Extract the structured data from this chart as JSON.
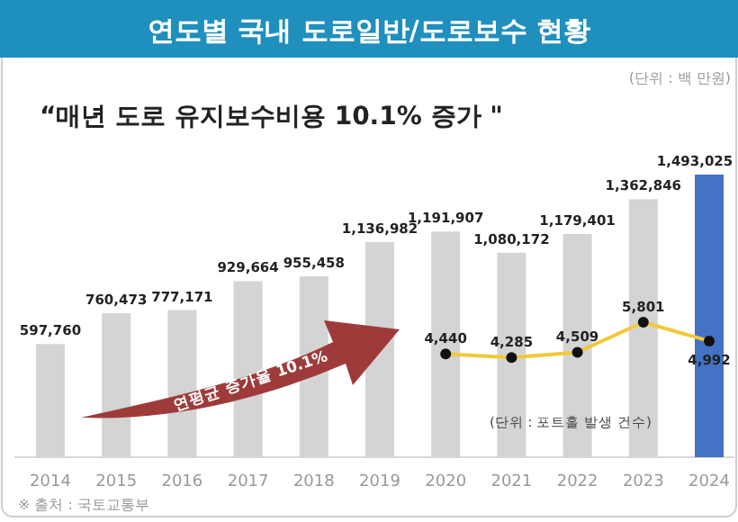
{
  "chart_data": {
    "type": "bar",
    "title": "연도별 국내 도로일반/도로보수 현황",
    "subtitle": "“매년 도로 유지보수비용 10.1% 증가 \"",
    "categories": [
      "2014",
      "2015",
      "2016",
      "2017",
      "2018",
      "2019",
      "2020",
      "2021",
      "2022",
      "2023",
      "2024"
    ],
    "series": [
      {
        "colors": [
          "#d4d4d4",
          "#d4d4d4",
          "#d4d4d4",
          "#d4d4d4",
          "#d4d4d4",
          "#d4d4d4",
          "#d4d4d4",
          "#d4d4d4",
          "#d4d4d4",
          "#d4d4d4",
          "#4472c4"
        ],
        "values": [
          597760,
          760473,
          777171,
          929664,
          955458,
          1136982,
          1191907,
          1080172,
          1179401,
          1362846,
          1493025
        ],
        "value_labels": [
          "597,760",
          "760,473",
          "777,171",
          "929,664",
          "955,458",
          "1,136,982",
          "1,191,907",
          "1,080,172",
          "1,179,401",
          "1,362,846",
          "1,493,025"
        ]
      },
      {
        "type": "line",
        "axis": "y2",
        "color": "#f2c93b",
        "marker": "circle",
        "values": [
          null,
          null,
          null,
          null,
          null,
          null,
          4440,
          4285,
          4509,
          5801,
          4992
        ],
        "value_labels": [
          null,
          null,
          null,
          null,
          null,
          null,
          "4,440",
          "4,285",
          "4,509",
          "5,801",
          "4,992"
        ]
      }
    ],
    "grid": false,
    "tick_labels": "x",
    "annotations": [
      "(단위 : 백 만원)",
      "연평균 증가율 10.1%",
      "(단위 : 포트홀 발생 건수)",
      "※ 출처 : 국토교통부"
    ]
  }
}
